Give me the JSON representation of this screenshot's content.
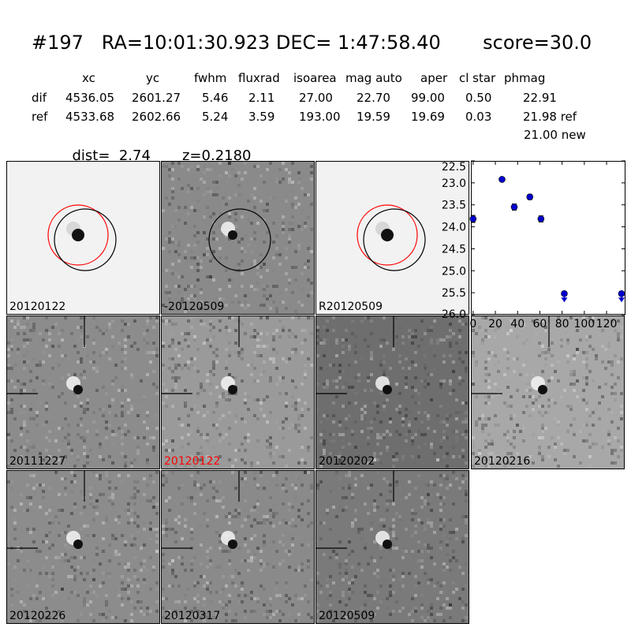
{
  "header": {
    "title": "#197   RA=10:01:30.923 DEC= 1:47:58.40       score=30.0",
    "columns": [
      "xc",
      "yc",
      "fwhm",
      "fluxrad",
      "isoarea",
      "mag auto",
      "aper",
      "cl star",
      "phmag"
    ],
    "rows": [
      {
        "name": "dif",
        "values": [
          "4536.05",
          "2601.27",
          "5.46",
          "2.11",
          "27.00",
          "22.70",
          "99.00",
          "0.50",
          "22.91"
        ]
      },
      {
        "name": "ref",
        "values": [
          "4533.68",
          "2602.66",
          "5.24",
          "3.59",
          "193.00",
          "19.59",
          "19.69",
          "0.03",
          "21.98 ref"
        ]
      }
    ],
    "phmag_new": "21.00 new",
    "dist": "dist=  2.74",
    "z": "z=0.2180"
  },
  "panels": [
    {
      "label": "20120122",
      "tone": "#f2f2f2",
      "circles": true,
      "red": true,
      "crosshair": false,
      "labelColor": "#000000"
    },
    {
      "label": "-20120509",
      "tone": "#8a8a8a",
      "circles": true,
      "red": false,
      "crosshair": false,
      "labelColor": "#000000"
    },
    {
      "label": "R20120509",
      "tone": "#f2f2f2",
      "circles": true,
      "red": true,
      "crosshair": false,
      "labelColor": "#000000"
    },
    {
      "label": "20111227",
      "tone": "#8c8c8c",
      "circles": false,
      "red": false,
      "crosshair": true,
      "labelColor": "#000000"
    },
    {
      "label": "20120122",
      "tone": "#9a9a9a",
      "circles": false,
      "red": false,
      "crosshair": true,
      "labelColor": "#ff0000"
    },
    {
      "label": "20120202",
      "tone": "#6e6e6e",
      "circles": false,
      "red": false,
      "crosshair": true,
      "labelColor": "#000000"
    },
    {
      "label": "20120216",
      "tone": "#a8a8a8",
      "circles": false,
      "red": false,
      "crosshair": true,
      "labelColor": "#000000"
    },
    {
      "label": "20120226",
      "tone": "#8c8c8c",
      "circles": false,
      "red": false,
      "crosshair": true,
      "labelColor": "#000000"
    },
    {
      "label": "20120317",
      "tone": "#8a8a8a",
      "circles": false,
      "red": false,
      "crosshair": true,
      "labelColor": "#000000"
    },
    {
      "label": "20120509",
      "tone": "#7a7a7a",
      "circles": false,
      "red": false,
      "crosshair": true,
      "labelColor": "#000000"
    }
  ],
  "chart_data": {
    "type": "scatter",
    "xlim": [
      -2,
      137
    ],
    "ylim": [
      26.0,
      22.5
    ],
    "xticks": [
      0,
      20,
      40,
      60,
      80,
      100,
      120
    ],
    "yticks": [
      22.5,
      23.0,
      23.5,
      24.0,
      24.5,
      25.0,
      25.5,
      26.0
    ],
    "points": [
      {
        "x": 0,
        "y": 23.82,
        "err": 0.08
      },
      {
        "x": 26,
        "y": 22.92,
        "err": 0.03
      },
      {
        "x": 37,
        "y": 23.55,
        "err": 0.07
      },
      {
        "x": 51,
        "y": 23.32,
        "err": 0.06
      },
      {
        "x": 61,
        "y": 23.82,
        "err": 0.07
      }
    ],
    "upper_limits": [
      {
        "x": 82,
        "y": 25.52
      },
      {
        "x": 135,
        "y": 25.52
      }
    ],
    "color": "#0000cc",
    "grid": false
  }
}
